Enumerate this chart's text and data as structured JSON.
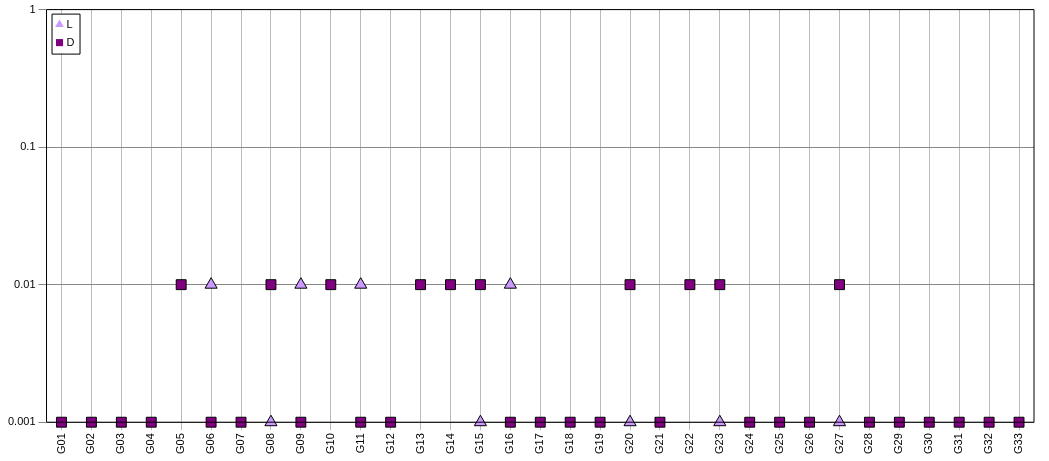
{
  "chart_data": {
    "type": "scatter",
    "log": "y",
    "grid": true,
    "legend": "top left",
    "categories": [
      "G01",
      "G02",
      "G03",
      "G04",
      "G05",
      "G06",
      "G07",
      "G08",
      "G09",
      "G10",
      "G11",
      "G12",
      "G13",
      "G14",
      "G15",
      "G16",
      "G17",
      "G18",
      "G19",
      "G20",
      "G21",
      "G22",
      "G23",
      "G24",
      "G25",
      "G26",
      "G27",
      "G28",
      "G29",
      "G30",
      "G31",
      "G32",
      "G33"
    ],
    "ylim": [
      0.001,
      1
    ],
    "yticks": [
      0.001,
      0.01,
      0.1,
      1
    ],
    "series": [
      {
        "name": "L",
        "color": "#cc99ff",
        "marker": "triangle",
        "values": [
          null,
          null,
          null,
          null,
          null,
          0.01,
          null,
          0.001,
          0.01,
          null,
          0.01,
          null,
          null,
          null,
          0.001,
          0.01,
          null,
          null,
          null,
          0.001,
          null,
          null,
          0.001,
          null,
          null,
          null,
          0.001,
          null,
          null,
          null,
          null,
          null,
          null
        ]
      },
      {
        "name": "D",
        "color": "#800080",
        "marker": "square",
        "values": [
          0.001,
          0.001,
          0.001,
          0.001,
          0.01,
          0.001,
          0.001,
          0.01,
          0.001,
          0.01,
          0.001,
          0.001,
          0.01,
          0.01,
          0.01,
          0.001,
          0.001,
          0.001,
          0.001,
          0.01,
          0.001,
          0.01,
          0.01,
          0.001,
          0.001,
          0.001,
          0.01,
          0.001,
          0.001,
          0.001,
          0.001,
          0.001,
          0.001
        ]
      }
    ]
  }
}
